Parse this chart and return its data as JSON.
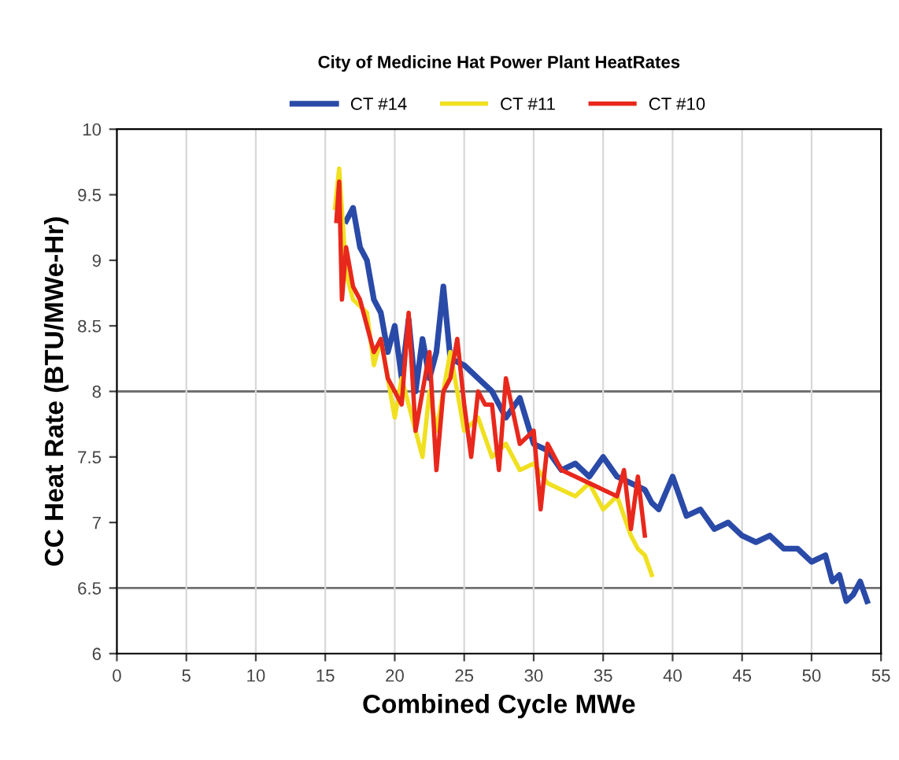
{
  "chart_data": {
    "type": "line",
    "title": "City of Medicine Hat Power Plant HeatRates",
    "xlabel": "Combined Cycle MWe",
    "ylabel": "CC Heat Rate (BTU/MWe-Hr)",
    "xlim": [
      0,
      55
    ],
    "xticks": [
      0,
      5,
      10,
      15,
      20,
      25,
      30,
      35,
      40,
      45,
      50,
      55
    ],
    "ylim": [
      6,
      10
    ],
    "yticks": [
      6,
      6.5,
      7,
      7.5,
      8,
      8.5,
      9,
      9.5,
      10
    ],
    "grid": "x",
    "legend": "top",
    "marker": "none",
    "line_style": "solid",
    "ref_lines": [
      {
        "axis": "y",
        "value": 8,
        "label": null
      },
      {
        "axis": "y",
        "value": 6.5,
        "label": null
      }
    ],
    "series": [
      {
        "name": "CT #14",
        "color": "#2a4aa8",
        "x": [
          16.5,
          17,
          17.5,
          18,
          18.5,
          19,
          19.5,
          20,
          20.5,
          21,
          21.5,
          22,
          22.5,
          23,
          23.5,
          24,
          25,
          26,
          27,
          28,
          29,
          30,
          31,
          32,
          33,
          34,
          35,
          36,
          37,
          38,
          38.5,
          39,
          40,
          41,
          42,
          43,
          44,
          45,
          46,
          47,
          48,
          49,
          50,
          51,
          51.5,
          52,
          52.5,
          53,
          53.5,
          54
        ],
        "values": [
          9.3,
          9.4,
          9.1,
          9.0,
          8.7,
          8.6,
          8.3,
          8.5,
          8.1,
          8.55,
          8.0,
          8.4,
          8.1,
          8.3,
          8.8,
          8.25,
          8.2,
          8.1,
          8.0,
          7.8,
          7.95,
          7.6,
          7.55,
          7.4,
          7.45,
          7.35,
          7.5,
          7.35,
          7.3,
          7.25,
          7.15,
          7.1,
          7.35,
          7.05,
          7.1,
          6.95,
          7.0,
          6.9,
          6.85,
          6.9,
          6.8,
          6.8,
          6.7,
          6.75,
          6.55,
          6.6,
          6.4,
          6.45,
          6.55,
          6.4
        ]
      },
      {
        "name": "CT #11",
        "color": "#f0e020",
        "x": [
          15.7,
          16,
          16.5,
          17,
          18,
          18.5,
          19,
          20,
          20.5,
          21,
          22,
          22.5,
          23,
          24,
          25,
          26,
          27,
          28,
          29,
          30,
          31,
          32,
          33,
          34,
          35,
          36,
          37,
          37.5,
          38,
          38.5
        ],
        "values": [
          9.4,
          9.7,
          8.9,
          8.7,
          8.6,
          8.2,
          8.4,
          7.8,
          8.1,
          7.9,
          7.5,
          8.0,
          7.7,
          8.3,
          7.7,
          7.8,
          7.5,
          7.6,
          7.4,
          7.45,
          7.3,
          7.25,
          7.2,
          7.3,
          7.1,
          7.2,
          6.9,
          6.8,
          6.75,
          6.6
        ]
      },
      {
        "name": "CT #10",
        "color": "#e8281c",
        "x": [
          15.8,
          16,
          16.2,
          16.5,
          17,
          17.5,
          18,
          18.5,
          19,
          19.5,
          20,
          20.5,
          21,
          21.5,
          22,
          22.5,
          23,
          23.5,
          24,
          24.5,
          25,
          25.5,
          26,
          26.5,
          27,
          27.5,
          28,
          29,
          30,
          30.5,
          31,
          32,
          33,
          34,
          35,
          36,
          36.5,
          37,
          37.5,
          38
        ],
        "values": [
          9.3,
          9.6,
          8.7,
          9.1,
          8.8,
          8.7,
          8.5,
          8.3,
          8.4,
          8.1,
          8.0,
          7.9,
          8.6,
          7.7,
          8.0,
          8.3,
          7.4,
          8.0,
          8.1,
          8.4,
          7.9,
          7.5,
          8.0,
          7.9,
          7.9,
          7.4,
          8.1,
          7.6,
          7.7,
          7.1,
          7.6,
          7.4,
          7.35,
          7.3,
          7.25,
          7.2,
          7.4,
          6.95,
          7.35,
          6.9
        ]
      }
    ]
  }
}
